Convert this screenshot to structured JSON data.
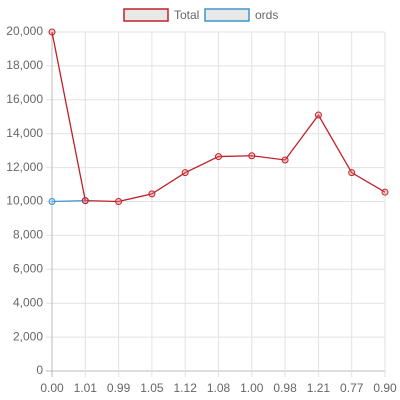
{
  "chart_data": {
    "type": "line",
    "categories": [
      "0.00",
      "1.01",
      "0.99",
      "1.05",
      "1.12",
      "1.08",
      "1.00",
      "0.98",
      "1.21",
      "0.77",
      "0.90"
    ],
    "series": [
      {
        "name": "Total",
        "color": "#c0202a",
        "values": [
          20000,
          10050,
          10000,
          10450,
          11700,
          12650,
          12700,
          12450,
          15100,
          11700,
          10550
        ]
      },
      {
        "name": "ords",
        "color": "#3e95cd",
        "values": [
          10000,
          10050,
          null,
          null,
          null,
          null,
          null,
          null,
          null,
          null,
          null
        ]
      }
    ],
    "ylim": [
      0,
      20000
    ],
    "yticks": [
      0,
      {
        "value": 2000,
        "label": "2,000"
      },
      {
        "value": 4000,
        "label": "4,000"
      },
      {
        "value": 6000,
        "label": "6,000"
      },
      {
        "value": 8000,
        "label": "8,000"
      },
      {
        "value": 10000,
        "label": "10,000"
      },
      {
        "value": 12000,
        "label": "12,000"
      },
      {
        "value": 14000,
        "label": "14,000"
      },
      {
        "value": 16000,
        "label": "16,000"
      },
      {
        "value": 18000,
        "label": "18,000"
      },
      {
        "value": 20000,
        "label": "20,000"
      }
    ],
    "grid": true
  }
}
